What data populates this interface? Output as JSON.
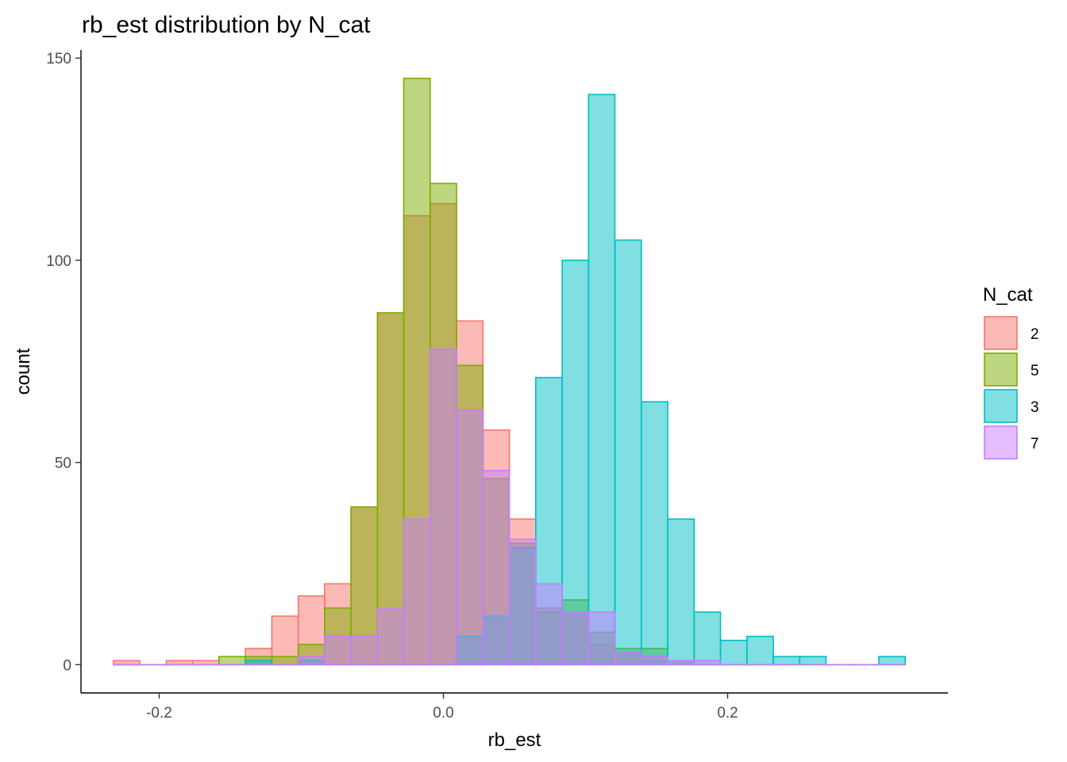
{
  "chart_data": {
    "type": "bar",
    "title": "rb_est distribution by N_cat",
    "xlabel": "rb_est",
    "ylabel": "count",
    "xlim": [
      -0.255,
      0.355
    ],
    "ylim": [
      -7,
      152
    ],
    "x_ticks": [
      -0.2,
      0.0,
      0.2
    ],
    "x_tick_labels": [
      "-0.2",
      "0.0",
      "0.2"
    ],
    "y_ticks": [
      0,
      50,
      100,
      150
    ],
    "y_tick_labels": [
      "0",
      "50",
      "100",
      "150"
    ],
    "bin_width": 0.01857,
    "bin_starts": [
      -0.2321,
      -0.2136,
      -0.195,
      -0.1764,
      -0.1579,
      -0.1393,
      -0.1207,
      -0.1021,
      -0.0836,
      -0.065,
      -0.0464,
      -0.0279,
      -0.0093,
      0.0093,
      0.0279,
      0.0464,
      0.065,
      0.0836,
      0.1021,
      0.1207,
      0.1393,
      0.1579,
      0.1764,
      0.195,
      0.2136,
      0.2321,
      0.2507,
      0.2693,
      0.2879,
      0.3064
    ],
    "grid": false,
    "legend": {
      "title": "N_cat",
      "position": "right"
    },
    "series": [
      {
        "name": "2",
        "fill": "#F8766D",
        "stroke": "#F8766D",
        "values": [
          1,
          0,
          1,
          1,
          0,
          4,
          12,
          17,
          20,
          39,
          87,
          111,
          114,
          85,
          58,
          36,
          14,
          13,
          5,
          3,
          1,
          0,
          0,
          0,
          0,
          0,
          0,
          0,
          0,
          0
        ]
      },
      {
        "name": "5",
        "fill": "#7CAE00",
        "stroke": "#7CAE00",
        "values": [
          0,
          0,
          0,
          0,
          2,
          2,
          2,
          5,
          14,
          39,
          87,
          145,
          119,
          74,
          46,
          30,
          13,
          16,
          8,
          4,
          4,
          1,
          0,
          0,
          0,
          0,
          0,
          0,
          0,
          0
        ]
      },
      {
        "name": "3",
        "fill": "#00BFC4",
        "stroke": "#00BFC4",
        "values": [
          0,
          0,
          0,
          0,
          0,
          1,
          0,
          1,
          0,
          0,
          0,
          0,
          0,
          7,
          12,
          29,
          71,
          100,
          141,
          105,
          65,
          36,
          13,
          6,
          7,
          2,
          2,
          0,
          0,
          2
        ]
      },
      {
        "name": "7",
        "fill": "#C77CFF",
        "stroke": "#C77CFF",
        "values": [
          0,
          0,
          0,
          0,
          0,
          0,
          0,
          2,
          7,
          7,
          14,
          36,
          78,
          63,
          48,
          31,
          20,
          13,
          13,
          3,
          2,
          1,
          1,
          0,
          0,
          0,
          0,
          0,
          0,
          0
        ]
      }
    ]
  }
}
